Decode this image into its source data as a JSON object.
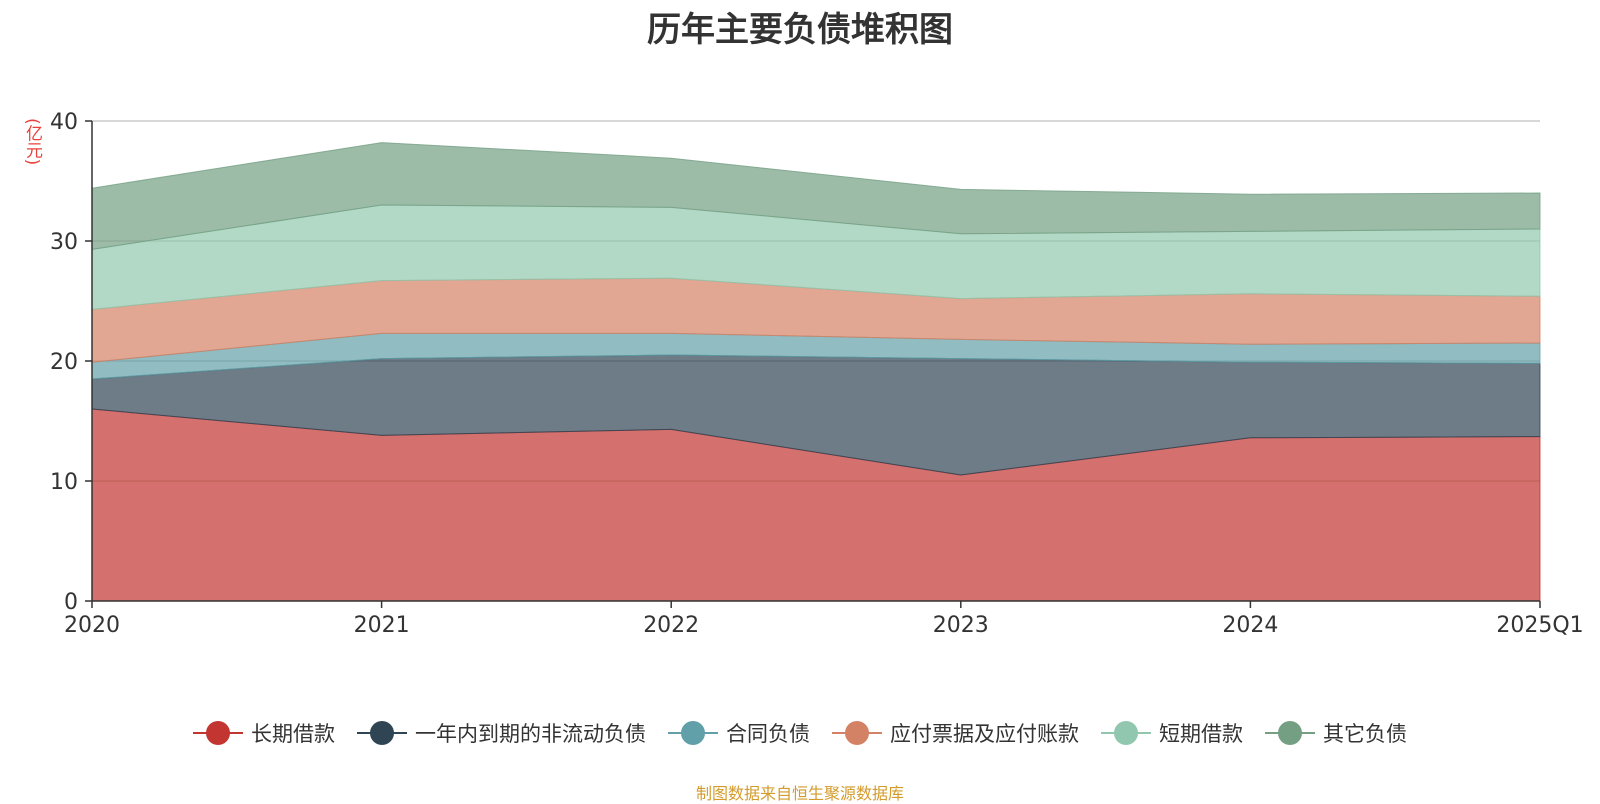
{
  "title": "历年主要负债堆积图",
  "unit_label": "(亿元)",
  "source": "制图数据来自恒生聚源数据库",
  "chart_data": {
    "type": "area",
    "stacked": true,
    "title": "历年主要负债堆积图",
    "ylabel": "(亿元)",
    "ylim": [
      0,
      40
    ],
    "yticks": [
      0,
      10,
      20,
      30,
      40
    ],
    "grid": true,
    "legend_position": "bottom",
    "categories": [
      "2020",
      "2021",
      "2022",
      "2023",
      "2024",
      "2025Q1"
    ],
    "series": [
      {
        "name": "长期借款",
        "color": "#c23531",
        "values": [
          16.0,
          13.8,
          14.3,
          10.5,
          13.6,
          13.7
        ]
      },
      {
        "name": "一年内到期的非流动负债",
        "color": "#2f4554",
        "values": [
          2.5,
          6.4,
          6.2,
          9.7,
          6.3,
          6.1
        ]
      },
      {
        "name": "合同负债",
        "color": "#61a0a8",
        "values": [
          1.4,
          2.1,
          1.8,
          1.6,
          1.5,
          1.7
        ]
      },
      {
        "name": "应付票据及应付账款",
        "color": "#d48265",
        "values": [
          4.4,
          4.4,
          4.6,
          3.4,
          4.2,
          3.9
        ]
      },
      {
        "name": "短期借款",
        "color": "#91c7ae",
        "values": [
          5.0,
          6.3,
          5.9,
          5.4,
          5.2,
          5.6
        ]
      },
      {
        "name": "其它负债",
        "color": "#749f83",
        "values": [
          5.1,
          5.2,
          4.1,
          3.7,
          3.1,
          3.0
        ]
      }
    ]
  }
}
